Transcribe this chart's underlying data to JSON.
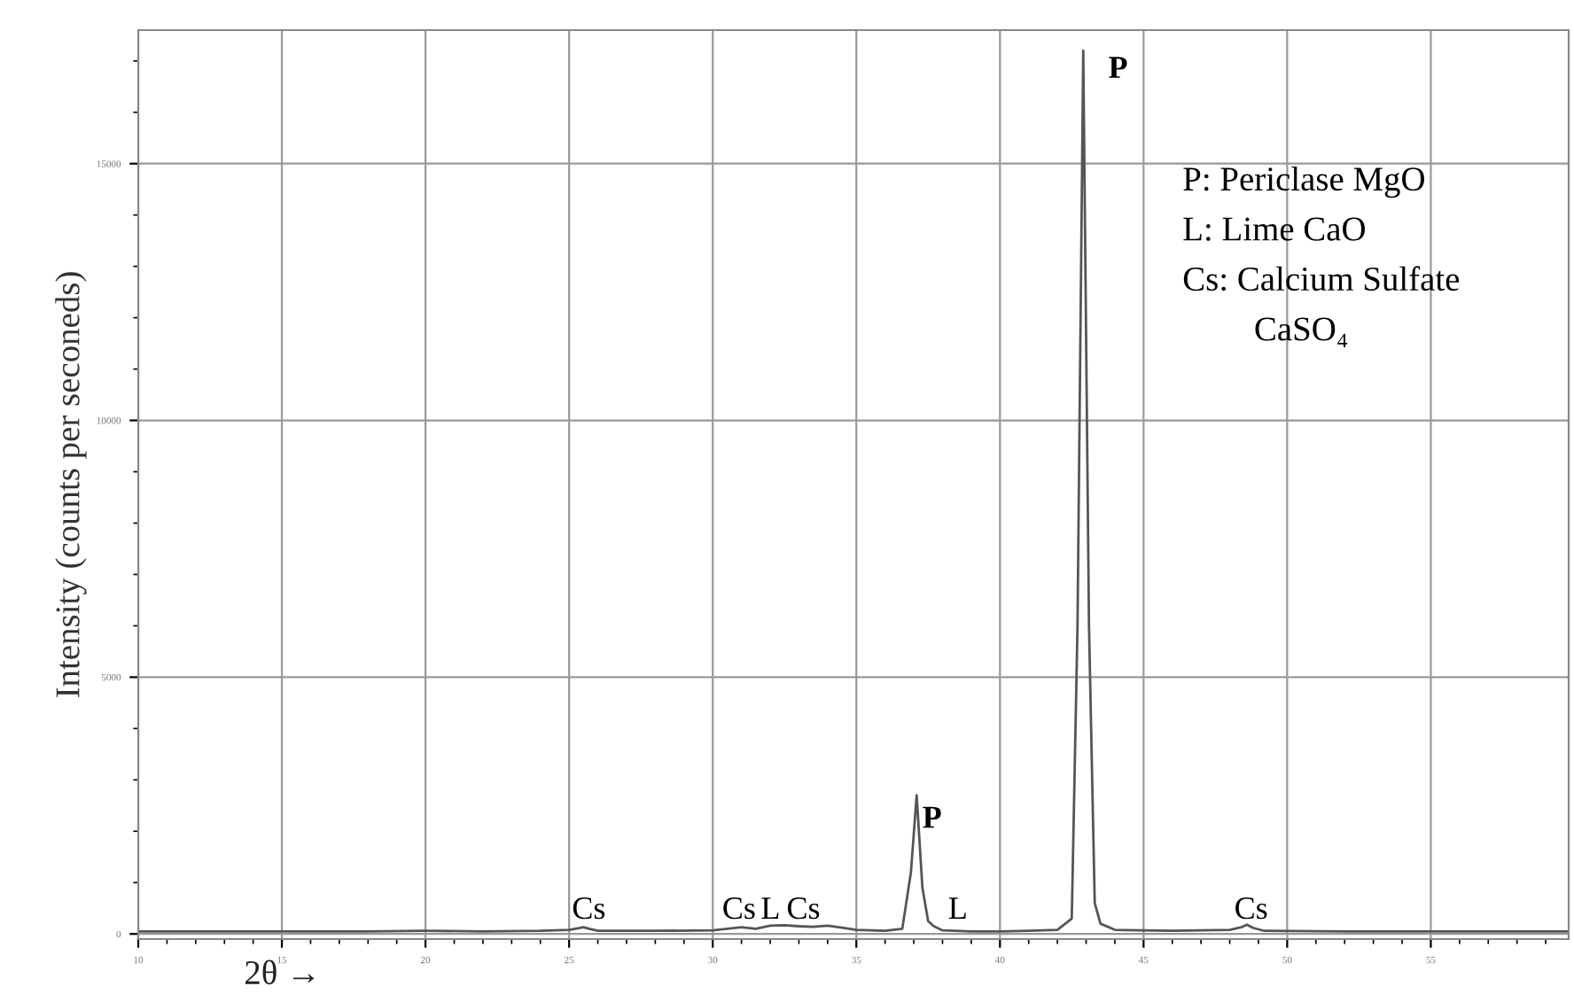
{
  "chart_data": {
    "type": "line",
    "xlabel": "2θ →",
    "ylabel": "Intensity (counts per seconeds)",
    "x": [
      10,
      12,
      14,
      16,
      18,
      20,
      22,
      24,
      25,
      25.3,
      25.5,
      25.7,
      26,
      28,
      30,
      31,
      31.5,
      32,
      32.5,
      33,
      33.5,
      34,
      34.5,
      35,
      36,
      36.6,
      36.9,
      37.1,
      37.3,
      37.5,
      37.7,
      38,
      39,
      40,
      41,
      42,
      42.5,
      42.7,
      42.9,
      43.1,
      43.3,
      43.5,
      44,
      46,
      48,
      48.4,
      48.6,
      48.8,
      49.2,
      52,
      55,
      58,
      59.8
    ],
    "series": [
      {
        "color": "#555555",
        "values": [
          50,
          50,
          50,
          50,
          50,
          60,
          50,
          60,
          80,
          110,
          130,
          100,
          60,
          60,
          70,
          130,
          100,
          160,
          170,
          150,
          140,
          160,
          120,
          80,
          60,
          100,
          1200,
          2700,
          900,
          250,
          150,
          70,
          50,
          50,
          60,
          80,
          300,
          6000,
          17200,
          6000,
          600,
          200,
          80,
          60,
          80,
          130,
          180,
          120,
          60,
          50,
          50,
          50,
          50
        ]
      }
    ],
    "xlim": [
      10,
      59.8
    ],
    "ylim": [
      -100,
      17600
    ],
    "xticks": [
      10,
      15,
      20,
      25,
      30,
      35,
      40,
      45,
      50,
      55
    ],
    "yticks": [
      0,
      5000,
      10000,
      15000
    ],
    "grid": true,
    "marker": "none",
    "line_style": "solid",
    "annotations": [
      "P",
      "P",
      "L",
      "Cs",
      "Cs",
      "L",
      "Cs",
      "Cs",
      "P: Periclase MgO",
      "L: Lime CaO",
      "Cs: Calcium Sulfate",
      "CaSO₄"
    ]
  }
}
